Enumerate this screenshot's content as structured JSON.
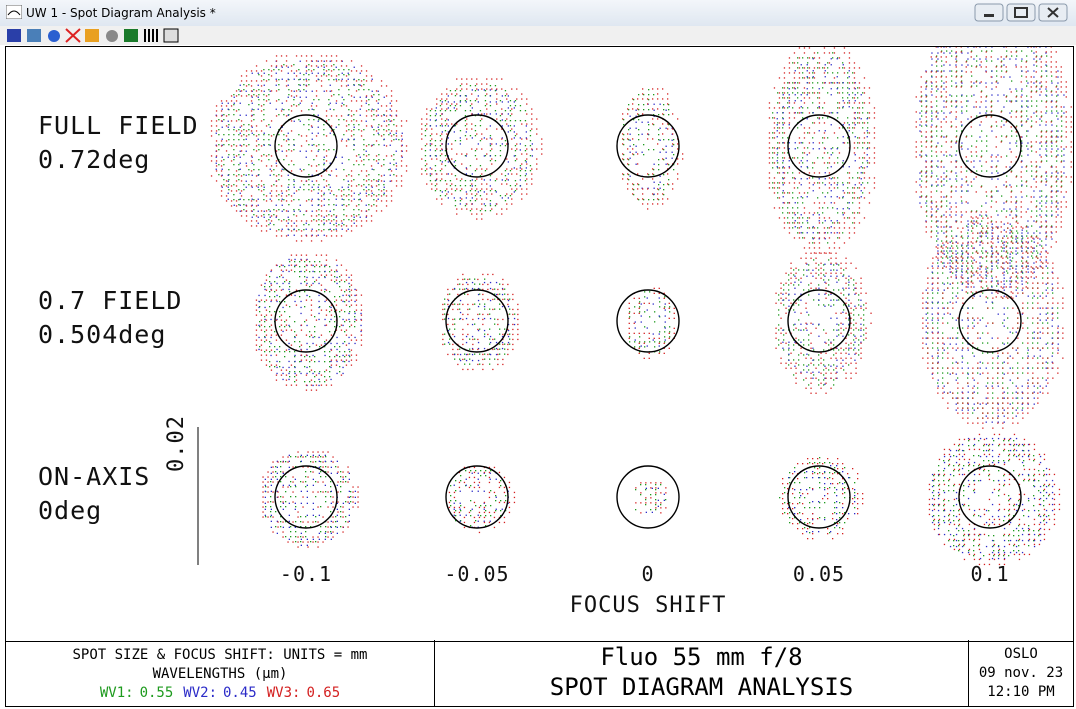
{
  "window": {
    "title": "UW 1 - Spot Diagram Analysis *"
  },
  "plot": {
    "rows": [
      {
        "name": "FULL FIELD",
        "angle": "0.72deg"
      },
      {
        "name": "0.7 FIELD",
        "angle": "0.504deg"
      },
      {
        "name": "ON-AXIS",
        "angle": "0deg"
      }
    ],
    "scale_label": "0.02",
    "focus_shifts": [
      "-0.1",
      "-0.05",
      "0",
      "0.05",
      "0.1"
    ],
    "x_axis_label": "FOCUS SHIFT"
  },
  "footer": {
    "units": "SPOT SIZE & FOCUS SHIFT: UNITS = mm",
    "wavelengths_label": "WAVELENGTHS (µm)",
    "wavelengths": [
      {
        "name": "WV1:",
        "value": "0.55"
      },
      {
        "name": "WV2:",
        "value": "0.45"
      },
      {
        "name": "WV3:",
        "value": "0.65"
      }
    ],
    "lens": "Fluo 55 mm f/8",
    "analysis": "SPOT DIAGRAM ANALYSIS",
    "program": "OSLO",
    "date": "09 nov. 23",
    "time": "12:10 PM"
  }
}
